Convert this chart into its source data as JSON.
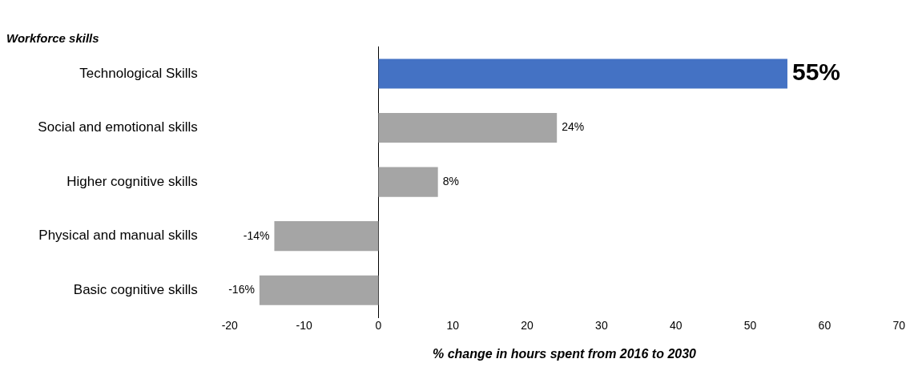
{
  "chart_data": {
    "type": "bar",
    "orientation": "horizontal",
    "title": "Workforce skills",
    "xlabel": "% change in hours spent from 2016 to 2030",
    "categories": [
      "Technological Skills",
      "Social and emotional skills",
      "Higher cognitive skills",
      "Physical and manual skills",
      "Basic cognitive skills"
    ],
    "values": [
      55,
      24,
      8,
      -14,
      -16
    ],
    "colors": [
      "#4472c4",
      "#a5a5a5",
      "#a5a5a5",
      "#a5a5a5",
      "#a5a5a5"
    ],
    "value_labels": [
      "55%",
      "24%",
      "8%",
      "-14%",
      "-16%"
    ],
    "xlim": [
      -20,
      70
    ],
    "xticks": [
      -20,
      -10,
      0,
      10,
      20,
      30,
      40,
      50,
      60,
      70
    ],
    "legend": false
  }
}
